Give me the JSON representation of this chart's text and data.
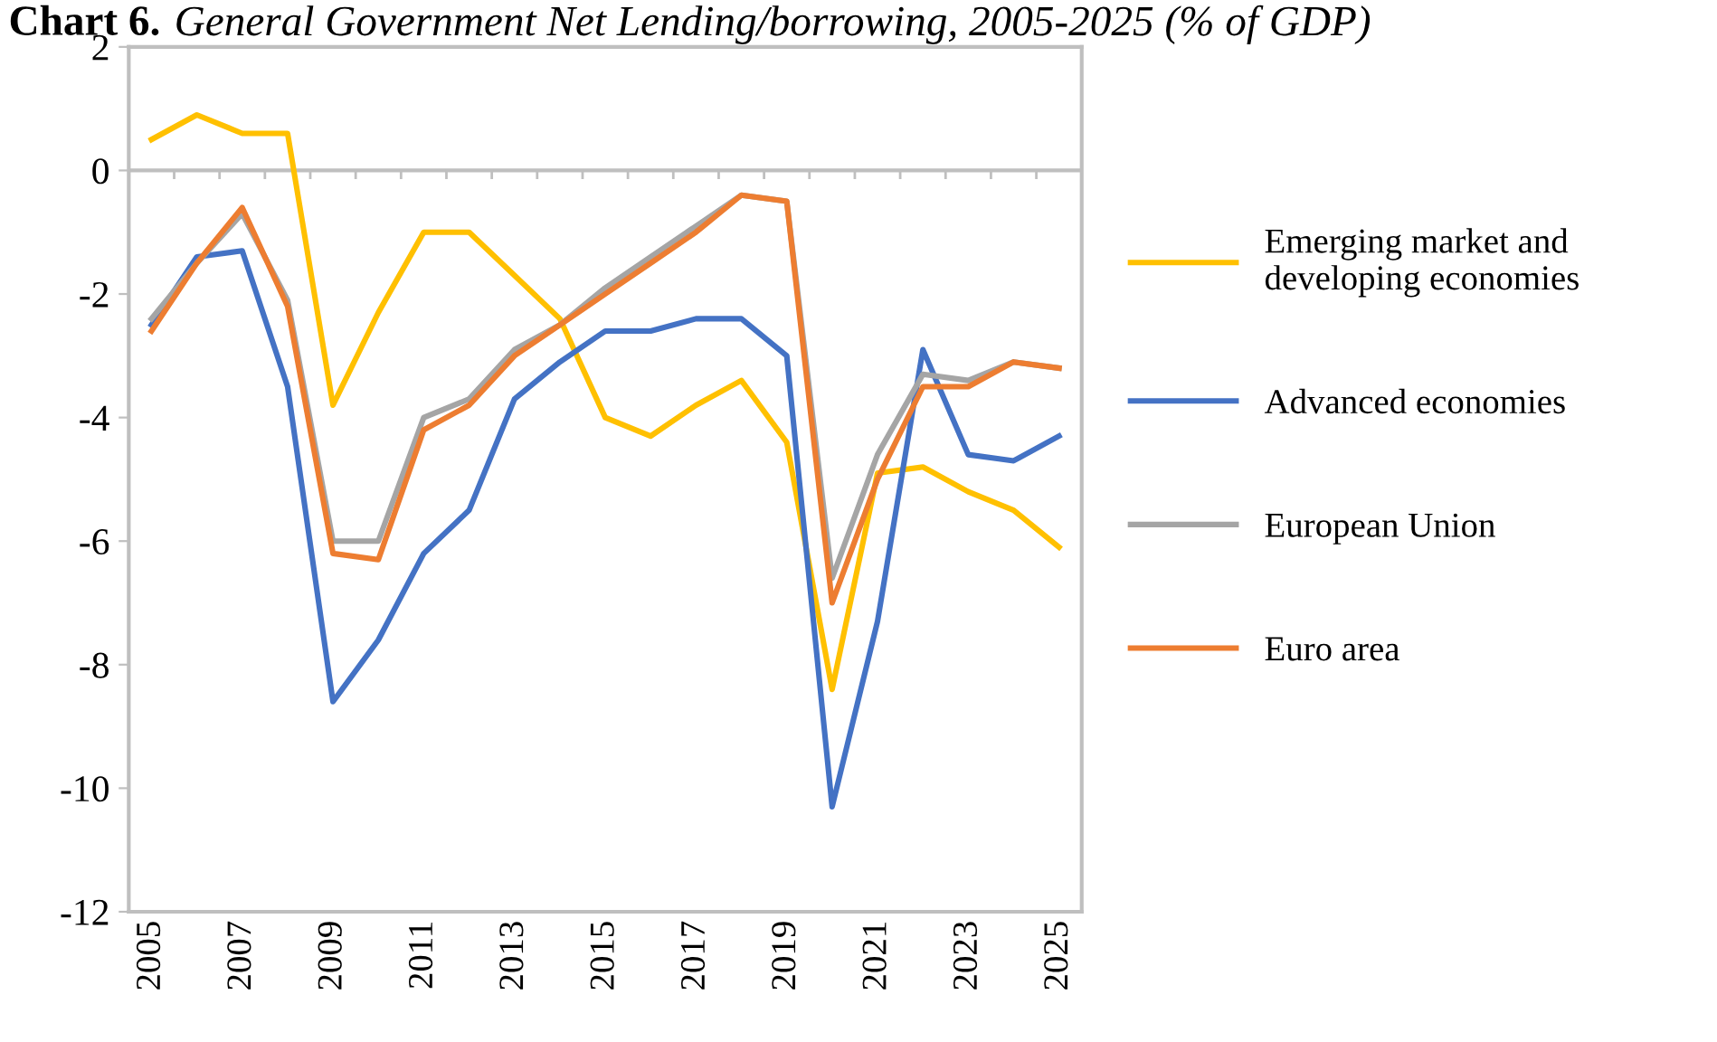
{
  "chart_data": {
    "type": "line",
    "title": "Chart 6.",
    "subtitle": "General Government Net Lending/borrowing, 2005-2025 (% of GDP)",
    "categories": [
      "2005",
      null,
      "2007",
      null,
      "2009",
      null,
      "2011",
      null,
      "2013",
      null,
      "2015",
      null,
      "2017",
      null,
      "2019",
      null,
      "2021",
      null,
      "2023",
      null,
      "2025"
    ],
    "series": [
      {
        "name": "Emerging market and\ndeveloping economies",
        "color": "#ffc000",
        "values": [
          0.5,
          0.9,
          0.6,
          0.6,
          -3.8,
          -2.3,
          -1.0,
          -1.0,
          -1.7,
          -2.4,
          -4.0,
          -4.3,
          -3.8,
          -3.4,
          -4.4,
          -8.4,
          -4.9,
          -4.8,
          -5.2,
          -5.5,
          -6.1
        ]
      },
      {
        "name": "Advanced economies",
        "color": "#4472c4",
        "values": [
          -2.5,
          -1.4,
          -1.3,
          -3.5,
          -8.6,
          -7.6,
          -6.2,
          -5.5,
          -3.7,
          -3.1,
          -2.6,
          -2.6,
          -2.4,
          -2.4,
          -3.0,
          -10.3,
          -7.3,
          -2.9,
          -4.6,
          -4.7,
          -4.3
        ]
      },
      {
        "name": "European Union",
        "color": "#a5a5a5",
        "values": [
          -2.4,
          -1.5,
          -0.7,
          -2.1,
          -6.0,
          -6.0,
          -4.0,
          -3.7,
          -2.9,
          -2.5,
          -1.9,
          -1.4,
          -0.9,
          -0.4,
          -0.5,
          -6.6,
          -4.6,
          -3.3,
          -3.4,
          -3.1,
          -3.2
        ]
      },
      {
        "name": "Euro area",
        "color": "#ed7d31",
        "values": [
          -2.6,
          -1.5,
          -0.6,
          -2.2,
          -6.2,
          -6.3,
          -4.2,
          -3.8,
          -3.0,
          -2.5,
          -2.0,
          -1.5,
          -1.0,
          -0.4,
          -0.5,
          -7.0,
          -5.0,
          -3.5,
          -3.5,
          -3.1,
          -3.2
        ]
      }
    ],
    "ylim": [
      -12,
      2
    ],
    "yticks": [
      -12,
      -10,
      -8,
      -6,
      -4,
      -2,
      0,
      2
    ],
    "ref_lines": [
      {
        "axis": "y",
        "value": 0,
        "color": "#bfbfbf"
      }
    ],
    "grid": false,
    "legend": "right",
    "line_style": "solid",
    "marker": "none"
  }
}
